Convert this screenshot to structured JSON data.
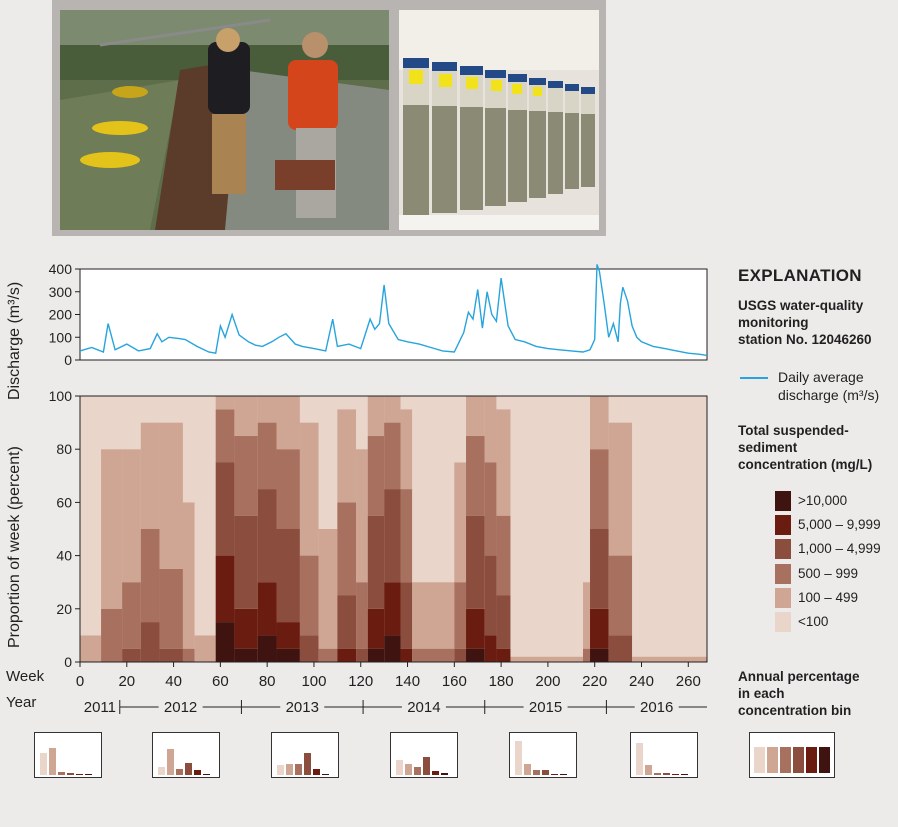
{
  "photos": {
    "left": {
      "icon": "field-sampling-photo"
    },
    "right": {
      "icon": "sample-bottles-photo"
    }
  },
  "explanation": {
    "title": "EXPLANATION",
    "station_line1": "USGS water-quality",
    "station_line2": "monitoring",
    "station_line3": "station No. 12046260",
    "line_label1": "Daily average",
    "line_label2": "discharge (m³/s)",
    "tssc_line1": "Total suspended-",
    "tssc_line2": "sediment",
    "tssc_line3": "concentration (mg/L)",
    "bins": [
      {
        "label": ">10,000",
        "color": "#3f1410"
      },
      {
        "label": "5,000 – 9,999",
        "color": "#6a1c10"
      },
      {
        "label": "1,000 – 4,999",
        "color": "#8b4d3e"
      },
      {
        "label": "500 – 999",
        "color": "#a8705f"
      },
      {
        "label": "100 – 499",
        "color": "#cfa594"
      },
      {
        "label": "<100",
        "color": "#ead5cb"
      }
    ],
    "annual_line1": "Annual percentage",
    "annual_line2": "in each",
    "annual_line3": "concentration bin"
  },
  "chart_data": [
    {
      "type": "line",
      "series": [
        {
          "name": "Daily average discharge (m³/s)",
          "color": "#27a4dd"
        }
      ],
      "x": [
        0,
        5,
        10,
        12,
        15,
        20,
        25,
        30,
        33,
        35,
        38,
        42,
        45,
        50,
        55,
        58,
        60,
        62,
        65,
        68,
        72,
        75,
        78,
        82,
        85,
        88,
        92,
        95,
        100,
        105,
        108,
        110,
        115,
        120,
        124,
        126,
        128,
        130,
        132,
        136,
        140,
        145,
        150,
        155,
        160,
        164,
        166,
        168,
        170,
        172,
        174,
        176,
        178,
        180,
        183,
        186,
        190,
        195,
        200,
        205,
        210,
        215,
        218,
        220,
        221,
        222,
        224,
        226,
        228,
        230,
        231,
        232,
        234,
        236,
        238,
        240,
        245,
        250,
        255,
        260,
        265,
        268
      ],
      "y": [
        40,
        55,
        35,
        160,
        45,
        70,
        40,
        50,
        115,
        80,
        100,
        95,
        90,
        60,
        35,
        30,
        150,
        100,
        200,
        110,
        80,
        65,
        60,
        80,
        100,
        115,
        70,
        60,
        50,
        40,
        180,
        60,
        70,
        50,
        180,
        135,
        160,
        330,
        160,
        90,
        80,
        70,
        55,
        40,
        35,
        120,
        210,
        180,
        310,
        140,
        300,
        200,
        170,
        360,
        150,
        90,
        80,
        60,
        50,
        45,
        40,
        35,
        45,
        90,
        420,
        390,
        250,
        100,
        160,
        80,
        250,
        320,
        260,
        150,
        100,
        80,
        60,
        50,
        40,
        30,
        25,
        20
      ],
      "xlim": [
        0,
        268
      ],
      "ylim": [
        0,
        400
      ],
      "yticks": [
        0,
        100,
        200,
        300,
        400
      ],
      "ylabel": "Discharge (m³/s)"
    },
    {
      "type": "area",
      "series": [
        {
          "name": ">10,000",
          "color": "#3f1410"
        },
        {
          "name": "5,000 – 9,999",
          "color": "#6a1c10"
        },
        {
          "name": "1,000 – 4,999",
          "color": "#8b4d3e"
        },
        {
          "name": "500 – 999",
          "color": "#a8705f"
        },
        {
          "name": "100 – 499",
          "color": "#cfa594"
        },
        {
          "name": "<100",
          "color": "#ead5cb"
        }
      ],
      "x_segments": [
        {
          "start": 0,
          "end": 9,
          "values": [
            0,
            0,
            0,
            0,
            10,
            90
          ]
        },
        {
          "start": 9,
          "end": 18,
          "values": [
            0,
            0,
            0,
            20,
            60,
            20
          ]
        },
        {
          "start": 18,
          "end": 26,
          "values": [
            0,
            0,
            5,
            25,
            50,
            20
          ]
        },
        {
          "start": 26,
          "end": 34,
          "values": [
            0,
            0,
            15,
            35,
            40,
            10
          ]
        },
        {
          "start": 34,
          "end": 44,
          "values": [
            0,
            0,
            5,
            30,
            55,
            10
          ]
        },
        {
          "start": 44,
          "end": 49,
          "values": [
            0,
            0,
            0,
            5,
            55,
            40
          ]
        },
        {
          "start": 49,
          "end": 58,
          "values": [
            0,
            0,
            0,
            0,
            10,
            90
          ]
        },
        {
          "start": 58,
          "end": 66,
          "values": [
            15,
            25,
            35,
            20,
            5,
            0
          ]
        },
        {
          "start": 66,
          "end": 76,
          "values": [
            5,
            15,
            35,
            30,
            15,
            0
          ]
        },
        {
          "start": 76,
          "end": 84,
          "values": [
            10,
            20,
            35,
            25,
            10,
            0
          ]
        },
        {
          "start": 84,
          "end": 94,
          "values": [
            5,
            10,
            35,
            30,
            20,
            0
          ]
        },
        {
          "start": 94,
          "end": 102,
          "values": [
            0,
            0,
            10,
            30,
            50,
            10
          ]
        },
        {
          "start": 102,
          "end": 110,
          "values": [
            0,
            0,
            0,
            5,
            45,
            50
          ]
        },
        {
          "start": 110,
          "end": 118,
          "values": [
            0,
            5,
            20,
            35,
            35,
            5
          ]
        },
        {
          "start": 118,
          "end": 123,
          "values": [
            0,
            0,
            5,
            25,
            50,
            20
          ]
        },
        {
          "start": 123,
          "end": 130,
          "values": [
            5,
            15,
            35,
            30,
            15,
            0
          ]
        },
        {
          "start": 130,
          "end": 137,
          "values": [
            10,
            20,
            35,
            25,
            10,
            0
          ]
        },
        {
          "start": 137,
          "end": 142,
          "values": [
            0,
            5,
            25,
            35,
            30,
            5
          ]
        },
        {
          "start": 142,
          "end": 160,
          "values": [
            0,
            0,
            0,
            5,
            25,
            70
          ]
        },
        {
          "start": 160,
          "end": 165,
          "values": [
            0,
            0,
            5,
            25,
            45,
            25
          ]
        },
        {
          "start": 165,
          "end": 173,
          "values": [
            5,
            15,
            35,
            30,
            15,
            0
          ]
        },
        {
          "start": 173,
          "end": 178,
          "values": [
            0,
            10,
            30,
            35,
            25,
            0
          ]
        },
        {
          "start": 178,
          "end": 184,
          "values": [
            0,
            5,
            20,
            30,
            40,
            5
          ]
        },
        {
          "start": 184,
          "end": 215,
          "values": [
            0,
            0,
            0,
            0,
            2,
            98
          ]
        },
        {
          "start": 215,
          "end": 218,
          "values": [
            0,
            0,
            0,
            5,
            25,
            70
          ]
        },
        {
          "start": 218,
          "end": 226,
          "values": [
            5,
            15,
            30,
            30,
            20,
            0
          ]
        },
        {
          "start": 226,
          "end": 236,
          "values": [
            0,
            0,
            10,
            30,
            50,
            10
          ]
        },
        {
          "start": 236,
          "end": 268,
          "values": [
            0,
            0,
            0,
            0,
            2,
            98
          ]
        }
      ],
      "xlim": [
        0,
        268
      ],
      "xticks": [
        0,
        20,
        40,
        60,
        80,
        100,
        120,
        140,
        160,
        180,
        200,
        220,
        240,
        260
      ],
      "ylim": [
        0,
        100
      ],
      "yticks": [
        0,
        20,
        40,
        60,
        80,
        100
      ],
      "ylabel": "Proportion of week (percent)",
      "week_label": "Week",
      "year_label": "Year",
      "years": [
        {
          "label": "2011",
          "start": 0,
          "end": 17
        },
        {
          "label": "2012",
          "start": 17,
          "end": 69
        },
        {
          "label": "2013",
          "start": 69,
          "end": 121
        },
        {
          "label": "2014",
          "start": 121,
          "end": 173
        },
        {
          "label": "2015",
          "start": 173,
          "end": 225
        },
        {
          "label": "2016",
          "start": 225,
          "end": 268
        }
      ]
    },
    {
      "type": "bar",
      "title": "Annual percentage in each concentration bin",
      "categories": [
        "<100",
        "100 – 499",
        "500 – 999",
        "1,000 – 4,999",
        "5,000 – 9,999",
        ">10,000"
      ],
      "series": [
        {
          "name": "2011",
          "values": [
            0.65,
            0.8,
            0.08,
            0.06,
            0.03,
            0.01
          ]
        },
        {
          "name": "2012",
          "values": [
            0.25,
            0.76,
            0.18,
            0.34,
            0.14,
            0.04
          ]
        },
        {
          "name": "2013",
          "values": [
            0.28,
            0.31,
            0.33,
            0.66,
            0.18,
            0.04
          ]
        },
        {
          "name": "2014",
          "values": [
            0.45,
            0.31,
            0.24,
            0.52,
            0.11,
            0.05
          ]
        },
        {
          "name": "2015",
          "values": [
            1.0,
            0.32,
            0.16,
            0.16,
            0.04,
            0.01
          ]
        },
        {
          "name": "2016",
          "values": [
            0.94,
            0.3,
            0.07,
            0.07,
            0.02,
            0.01
          ]
        }
      ],
      "ylim": [
        0,
        1
      ]
    }
  ]
}
